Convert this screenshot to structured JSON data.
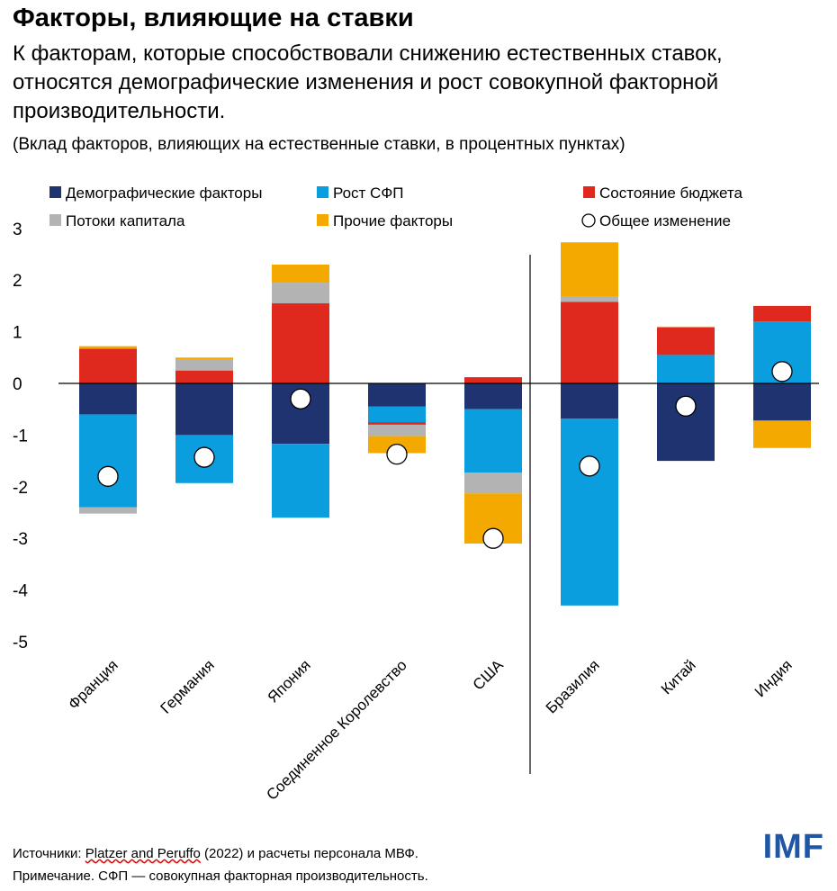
{
  "title": "Факторы, влияющие на ставки",
  "subtitle": "К факторам, которые способствовали снижению естественных ставок, относятся демографические изменения и рост совокупной факторной производительности.",
  "note": "(Вклад факторов, влияющих на естественные ставки, в процентных пунктах)",
  "footer": {
    "sources_prefix": "Источники: ",
    "sources_link": "Platzer and Peruffo",
    "sources_suffix": " (2022) и расчеты персонала МВФ.",
    "note": "Примечание. СФП — совокупная факторная производительность."
  },
  "logo": "IMF",
  "chart_data": {
    "type": "bar",
    "stacked": true,
    "categories": [
      "Франция",
      "Германия",
      "Япония",
      "Соединенное Королевство",
      "США",
      "Бразилия",
      "Китай",
      "Индия"
    ],
    "ylim": [
      -5,
      3
    ],
    "yticks": [
      3,
      2,
      1,
      0,
      -1,
      -2,
      -3,
      -4,
      -5
    ],
    "grid": false,
    "legend_placement": "top",
    "series": [
      {
        "name": "Демографические факторы",
        "color": "#1f3370",
        "values": [
          -0.6,
          -1.0,
          -1.17,
          -0.45,
          -0.5,
          -0.68,
          -1.5,
          -0.72
        ]
      },
      {
        "name": "Рост СФП",
        "color": "#0a9ede",
        "values": [
          -1.8,
          -0.93,
          -1.43,
          -0.3,
          -1.23,
          -3.62,
          0.55,
          1.2
        ]
      },
      {
        "name": "Состояние бюджета",
        "color": "#e0291e",
        "values": [
          0.67,
          0.25,
          1.55,
          -0.05,
          0.12,
          1.58,
          0.53,
          0.3
        ]
      },
      {
        "name": "Потоки капитала",
        "color": "#b3b3b3",
        "values": [
          -0.12,
          0.22,
          0.4,
          -0.22,
          -0.4,
          0.1,
          0,
          0
        ]
      },
      {
        "name": "Прочие факторы",
        "color": "#f3a900",
        "values": [
          0.05,
          0.03,
          0.35,
          -0.33,
          -0.97,
          1.05,
          0.02,
          -0.53
        ]
      }
    ],
    "total": {
      "name": "Общее изменение",
      "marker": "circle",
      "values": [
        -1.8,
        -1.43,
        -0.3,
        -1.37,
        -3.0,
        -1.6,
        -0.44,
        0.23
      ]
    }
  }
}
